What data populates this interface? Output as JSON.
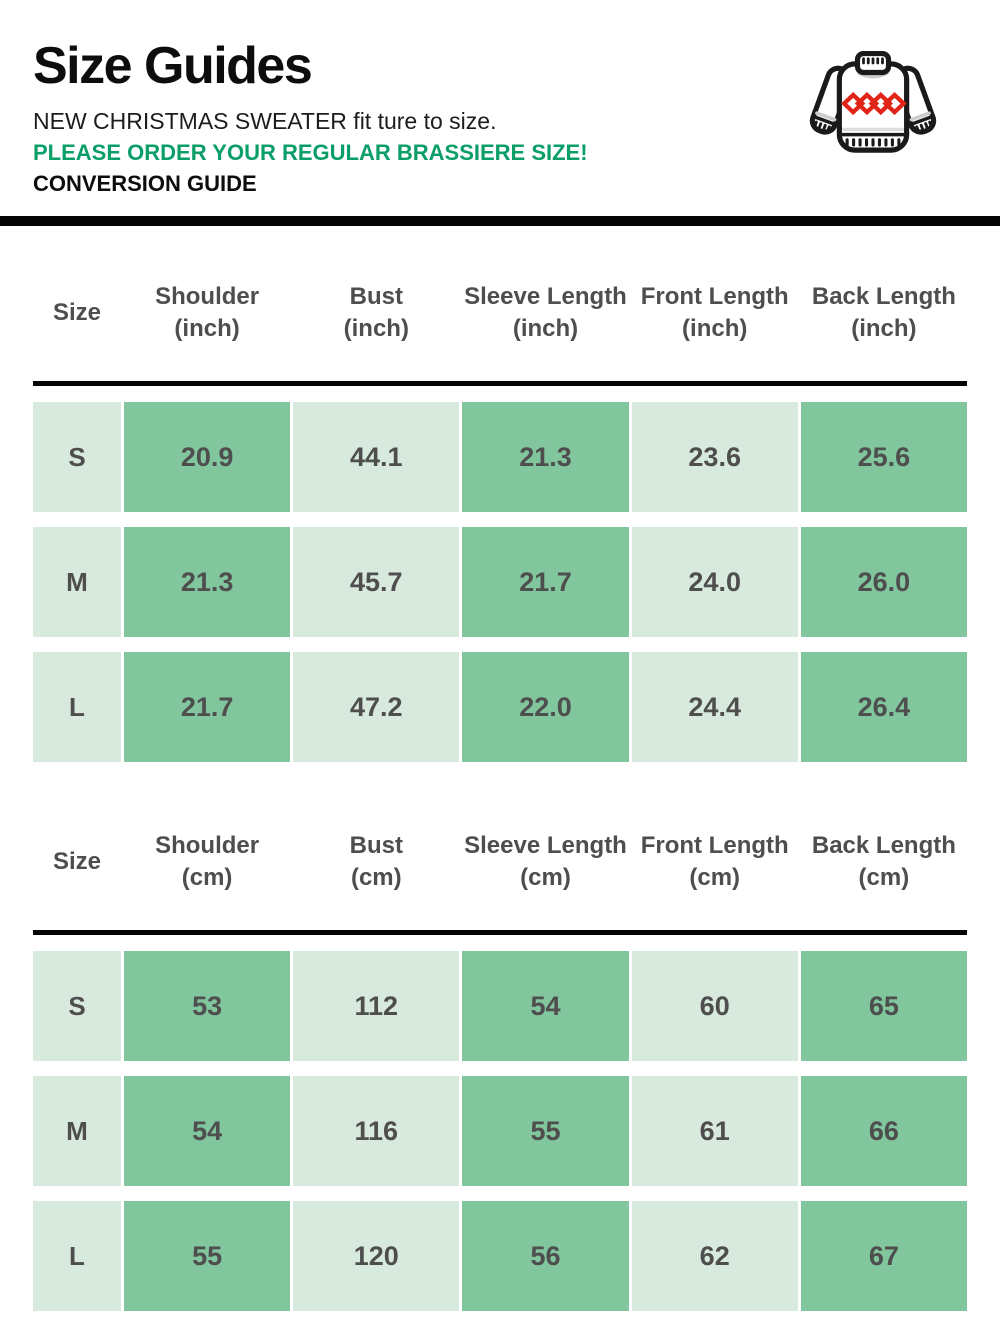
{
  "header": {
    "title": "Size Guides",
    "subtitle": "NEW CHRISTMAS SWEATER fit ture to size.",
    "notice": "PLEASE ORDER YOUR REGULAR BRASSIERE SIZE!",
    "conversion_label": "CONVERSION GUIDE",
    "icon": "christmas-sweater-icon"
  },
  "colors": {
    "accent_green": "#0a9e68",
    "cell_light": "#d8e9dd",
    "cell_medium": "#81c69d",
    "table_text": "#4e4e4e",
    "divider_black": "#050505",
    "diamond_red": "#e02418"
  },
  "tables": [
    {
      "unit": "inch",
      "columns": [
        {
          "label": "Size",
          "sub": ""
        },
        {
          "label": "Shoulder",
          "sub": "(inch)"
        },
        {
          "label": "Bust",
          "sub": "(inch)"
        },
        {
          "label": "Sleeve Length",
          "sub": "(inch)"
        },
        {
          "label": "Front Length",
          "sub": "(inch)"
        },
        {
          "label": "Back Length",
          "sub": "(inch)"
        }
      ],
      "rows": [
        {
          "size": "S",
          "values": [
            "20.9",
            "44.1",
            "21.3",
            "23.6",
            "25.6"
          ]
        },
        {
          "size": "M",
          "values": [
            "21.3",
            "45.7",
            "21.7",
            "24.0",
            "26.0"
          ]
        },
        {
          "size": "L",
          "values": [
            "21.7",
            "47.2",
            "22.0",
            "24.4",
            "26.4"
          ]
        }
      ]
    },
    {
      "unit": "cm",
      "columns": [
        {
          "label": "Size",
          "sub": ""
        },
        {
          "label": "Shoulder",
          "sub": "(cm)"
        },
        {
          "label": "Bust",
          "sub": "(cm)"
        },
        {
          "label": "Sleeve Length",
          "sub": "(cm)"
        },
        {
          "label": "Front Length",
          "sub": "(cm)"
        },
        {
          "label": "Back Length",
          "sub": "(cm)"
        }
      ],
      "rows": [
        {
          "size": "S",
          "values": [
            "53",
            "112",
            "54",
            "60",
            "65"
          ]
        },
        {
          "size": "M",
          "values": [
            "54",
            "116",
            "55",
            "61",
            "66"
          ]
        },
        {
          "size": "L",
          "values": [
            "55",
            "120",
            "56",
            "62",
            "67"
          ]
        }
      ]
    }
  ]
}
